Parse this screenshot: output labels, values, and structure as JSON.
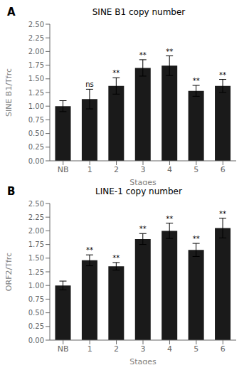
{
  "chart_data": [
    {
      "type": "bar",
      "title": "SINE B1 copy number",
      "panel_label": "A",
      "xlabel": "Stages",
      "ylabel": "SINE B1/Tfrc",
      "categories": [
        "NB",
        "1",
        "2",
        "3",
        "4",
        "5",
        "6"
      ],
      "values": [
        1.0,
        1.13,
        1.37,
        1.7,
        1.74,
        1.28,
        1.37
      ],
      "errors": [
        0.1,
        0.18,
        0.15,
        0.15,
        0.18,
        0.1,
        0.12
      ],
      "significance": [
        null,
        "ns",
        "**",
        "**",
        "**",
        "**",
        "**"
      ],
      "color": "#1a1a1a",
      "ylim": [
        0,
        2.5
      ],
      "yticks": [
        {
          "value": 0,
          "label": "0.00"
        },
        {
          "value": 0.25,
          "label": "0.25"
        },
        {
          "value": 0.5,
          "label": "0.50"
        },
        {
          "value": 0.75,
          "label": "0.75"
        },
        {
          "value": 1,
          "label": "1.00"
        },
        {
          "value": 1.25,
          "label": "1.25"
        },
        {
          "value": 1.5,
          "label": "1.50"
        },
        {
          "value": 1.75,
          "label": "1.75"
        },
        {
          "value": 2,
          "label": "2.00"
        },
        {
          "value": 2.25,
          "label": "2.25"
        },
        {
          "value": 2.5,
          "label": "2.50"
        }
      ]
    },
    {
      "type": "bar",
      "title": "LINE-1 copy number",
      "panel_label": "B",
      "xlabel": "Stages",
      "ylabel": "ORF2/Tfrc",
      "categories": [
        "NB",
        "1",
        "2",
        "3",
        "4",
        "5",
        "6"
      ],
      "values": [
        1.0,
        1.46,
        1.35,
        1.85,
        2.0,
        1.65,
        2.05
      ],
      "errors": [
        0.08,
        0.1,
        0.07,
        0.1,
        0.14,
        0.12,
        0.18
      ],
      "significance": [
        null,
        "**",
        "**",
        "**",
        "**",
        "**",
        "**"
      ],
      "color": "#1a1a1a",
      "ylim": [
        0,
        2.5
      ],
      "yticks": [
        {
          "value": 0,
          "label": "0.00"
        },
        {
          "value": 0.25,
          "label": "0.25"
        },
        {
          "value": 0.5,
          "label": "0.50"
        },
        {
          "value": 0.75,
          "label": "0.75"
        },
        {
          "value": 1,
          "label": "1.00"
        },
        {
          "value": 1.25,
          "label": "1.25"
        },
        {
          "value": 1.5,
          "label": "1.50"
        },
        {
          "value": 1.75,
          "label": "1.75"
        },
        {
          "value": 2,
          "label": "2.00"
        },
        {
          "value": 2.25,
          "label": "2.25"
        },
        {
          "value": 2.5,
          "label": "2.50"
        }
      ]
    }
  ]
}
